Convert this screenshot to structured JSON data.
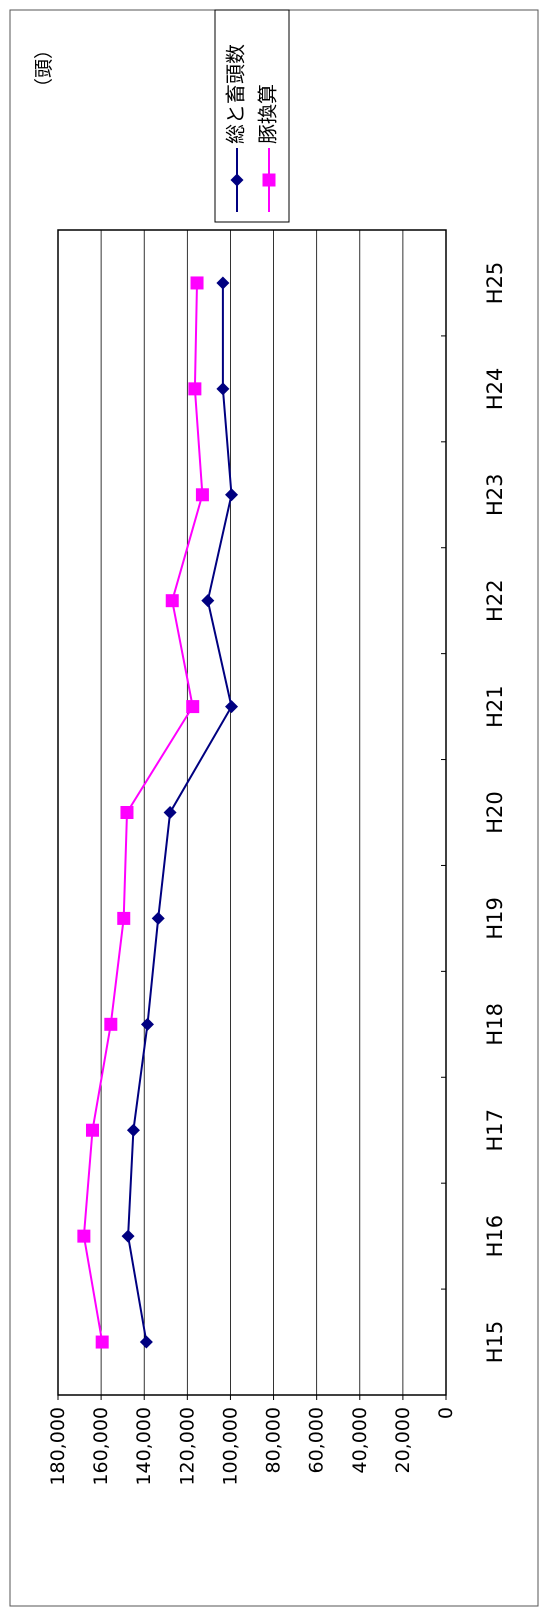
{
  "chart_data": {
    "type": "line",
    "orientation": "rotated-90-ccw",
    "unit_label": "（頭）",
    "categories": [
      "H15",
      "H16",
      "H17",
      "H18",
      "H19",
      "H20",
      "H21",
      "H22",
      "H23",
      "H24",
      "H25"
    ],
    "ylim": [
      0,
      180000
    ],
    "yticks": [
      0,
      20000,
      40000,
      60000,
      80000,
      100000,
      120000,
      140000,
      160000,
      180000
    ],
    "ytick_labels": [
      "0",
      "20,000",
      "40,000",
      "60,000",
      "80,000",
      "100,000",
      "120,000",
      "140,000",
      "160,000",
      "180,000"
    ],
    "grid": true,
    "legend_position": "top-right",
    "series": [
      {
        "name": "総と畜頭数",
        "color": "#000080",
        "marker": "diamond",
        "values": [
          139000,
          147500,
          145000,
          138500,
          133500,
          128000,
          99500,
          110500,
          99500,
          103500,
          103500
        ]
      },
      {
        "name": "豚換算",
        "color": "#ff00ff",
        "marker": "square",
        "values": [
          159500,
          168000,
          164000,
          155500,
          149500,
          148000,
          117500,
          127000,
          113000,
          116500,
          115500
        ]
      }
    ]
  }
}
